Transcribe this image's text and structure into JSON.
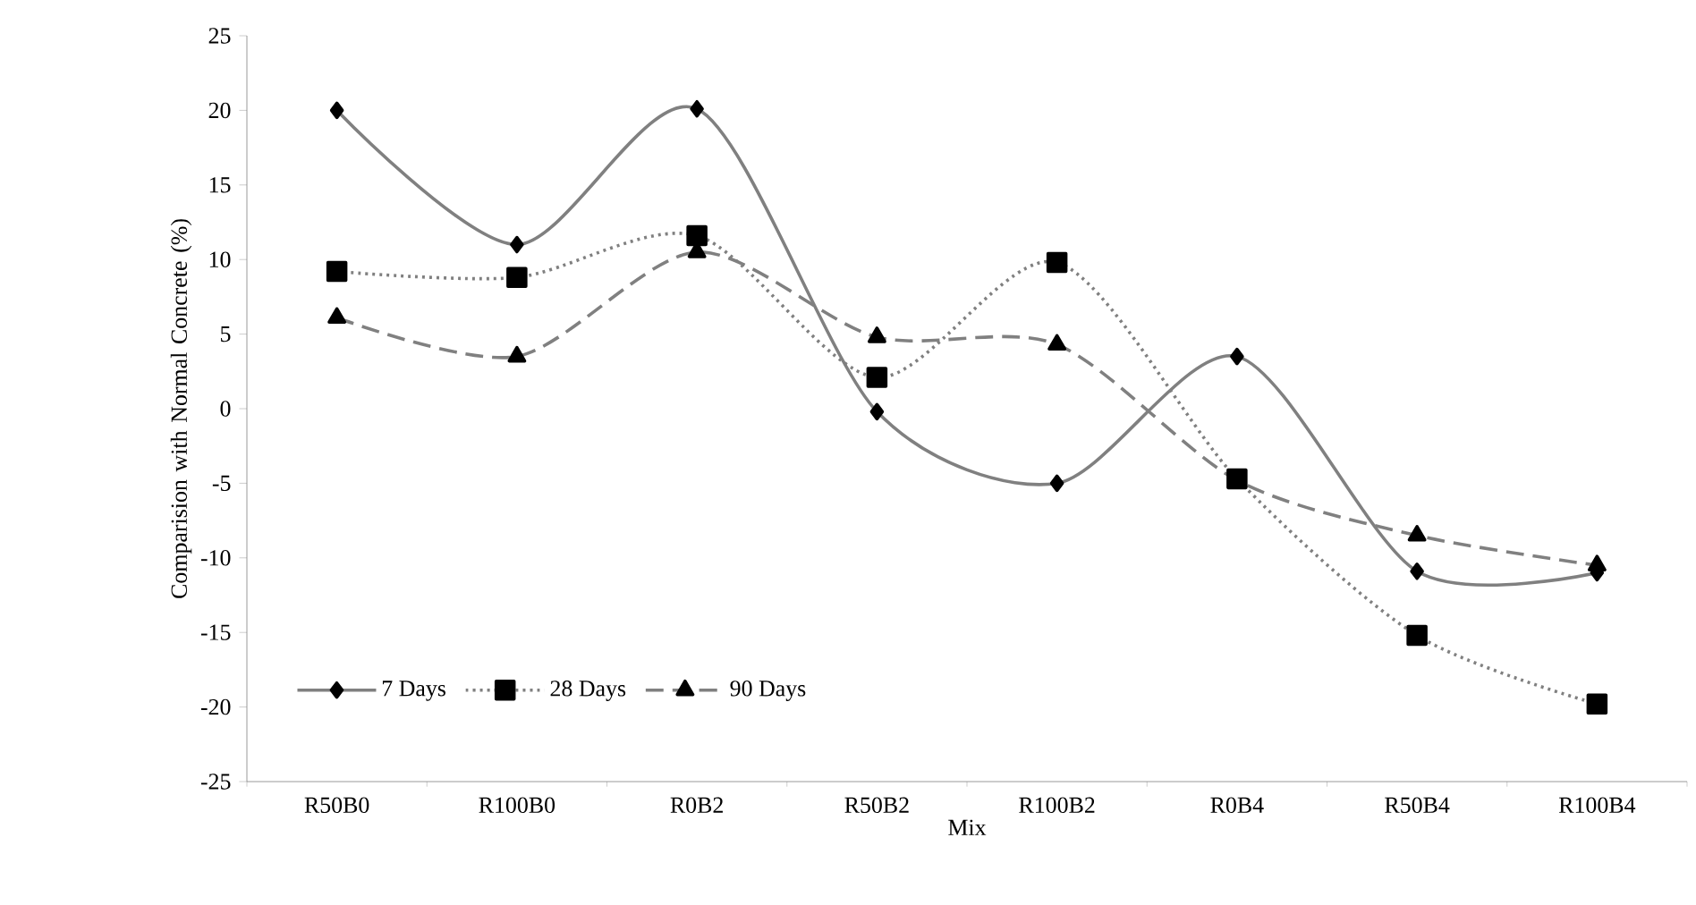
{
  "chart_data": {
    "type": "line",
    "xlabel": "Mix",
    "ylabel": "Comparision with Normal Concrete (%)",
    "categories": [
      "R50B0",
      "R100B0",
      "R0B2",
      "R50B2",
      "R100B2",
      "R0B4",
      "R50B4",
      "R100B4"
    ],
    "ylim": [
      -25,
      25
    ],
    "yticks": [
      -25,
      -20,
      -15,
      -10,
      -5,
      0,
      5,
      10,
      15,
      20,
      25
    ],
    "grid": false,
    "legend": "bottom left",
    "series": [
      {
        "name": "7 Days",
        "color": "#808080",
        "marker": "diamond",
        "line_style": "solid",
        "values": [
          20,
          11,
          20.1,
          -0.2,
          -5,
          3.5,
          -10.9,
          -11
        ]
      },
      {
        "name": "28 Days",
        "color": "#808080",
        "marker": "square",
        "line_style": "dotted",
        "values": [
          9.2,
          8.8,
          11.6,
          2.1,
          9.8,
          -4.7,
          -15.2,
          -19.8
        ]
      },
      {
        "name": "90 Days",
        "color": "#808080",
        "marker": "triangle",
        "line_style": "dashed",
        "values": [
          6.1,
          3.5,
          10.5,
          4.8,
          4.3,
          -4.8,
          -8.5,
          -10.5
        ]
      }
    ]
  }
}
